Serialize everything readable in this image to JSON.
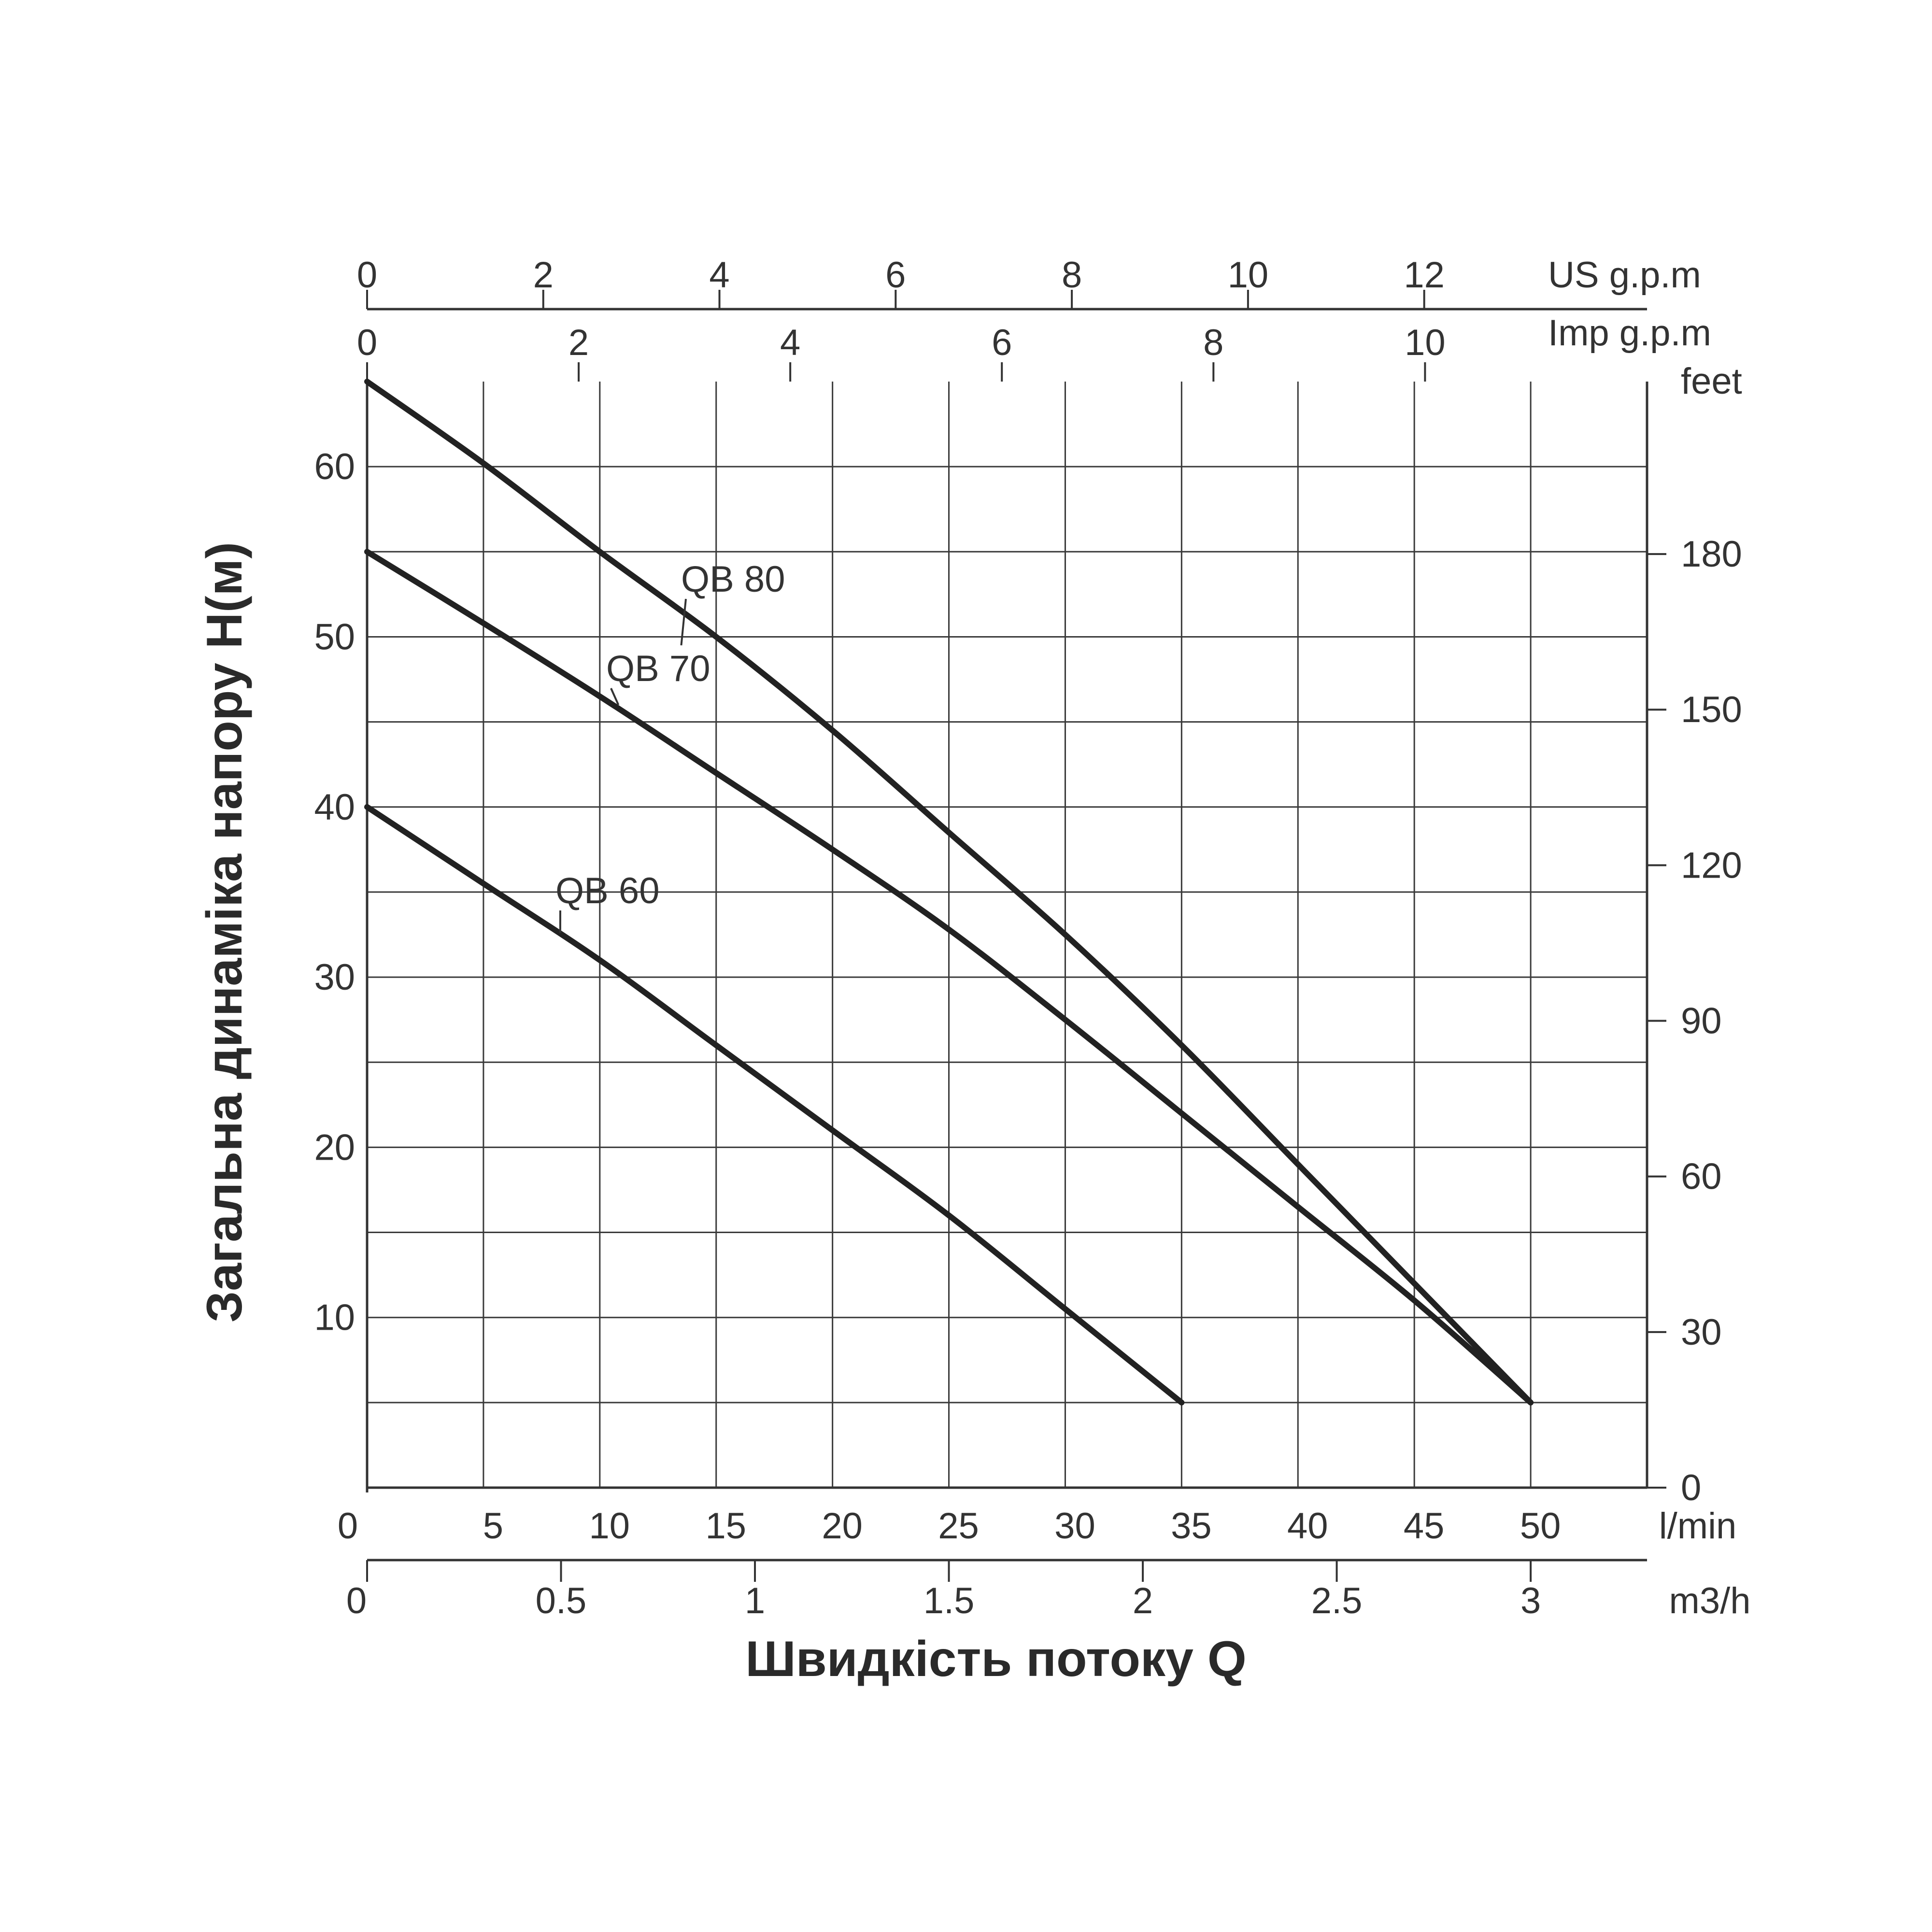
{
  "chart_data": {
    "type": "line",
    "title": "",
    "xlabel": "Швидкість потоку Q",
    "ylabel": "Загальна динаміка напору H(м)",
    "grid": true,
    "xlim": [
      0,
      55
    ],
    "ylim": [
      0,
      65
    ],
    "x_axis": {
      "unit": "l/min",
      "ticks": [
        0,
        5,
        10,
        15,
        20,
        25,
        30,
        35,
        40,
        45,
        50
      ],
      "labels": [
        "0",
        "5",
        "10",
        "15",
        "20",
        "25",
        "30",
        "35",
        "40",
        "45",
        "50"
      ]
    },
    "x_axis_m3h": {
      "unit": "m3/h",
      "ticks": [
        0,
        0.5,
        1,
        1.5,
        2,
        2.5,
        3
      ],
      "labels": [
        "0",
        "0.5",
        "1",
        "1.5",
        "2",
        "2.5",
        "3"
      ]
    },
    "top_axis_us": {
      "unit": "US g.p.m",
      "ticks": [
        0,
        2,
        4,
        6,
        8,
        10,
        12
      ],
      "labels": [
        "0",
        "2",
        "4",
        "6",
        "8",
        "10",
        "12"
      ]
    },
    "top_axis_imp": {
      "unit": "Imp g.p.m",
      "ticks": [
        0,
        2,
        4,
        6,
        8,
        10
      ],
      "labels": [
        "0",
        "2",
        "4",
        "6",
        "8",
        "10"
      ]
    },
    "y_axis": {
      "ticks": [
        10,
        20,
        30,
        40,
        50,
        60
      ],
      "labels": [
        "10",
        "20",
        "30",
        "40",
        "50",
        "60"
      ]
    },
    "y_axis_feet": {
      "unit": "feet",
      "ticks": [
        0,
        30,
        60,
        90,
        120,
        150,
        180
      ],
      "labels": [
        "0",
        "30",
        "60",
        "90",
        "120",
        "150",
        "180"
      ]
    },
    "series": [
      {
        "name": "QB 80",
        "x": [
          0,
          5,
          10,
          15,
          20,
          25,
          30,
          35,
          40,
          45,
          50
        ],
        "y": [
          65,
          60.2,
          55,
          50,
          44.5,
          38.5,
          32.5,
          26,
          19,
          12,
          5
        ]
      },
      {
        "name": "QB 70",
        "x": [
          0,
          5,
          10,
          15,
          20,
          25,
          30,
          35,
          40,
          45,
          50
        ],
        "y": [
          55,
          50.8,
          46.5,
          42,
          37.5,
          32.8,
          27.5,
          22,
          16.5,
          11,
          5
        ]
      },
      {
        "name": "QB 60",
        "x": [
          0,
          5,
          10,
          15,
          20,
          25,
          30,
          35
        ],
        "y": [
          40,
          35.5,
          31,
          26,
          21,
          16,
          10.5,
          5
        ]
      }
    ]
  }
}
